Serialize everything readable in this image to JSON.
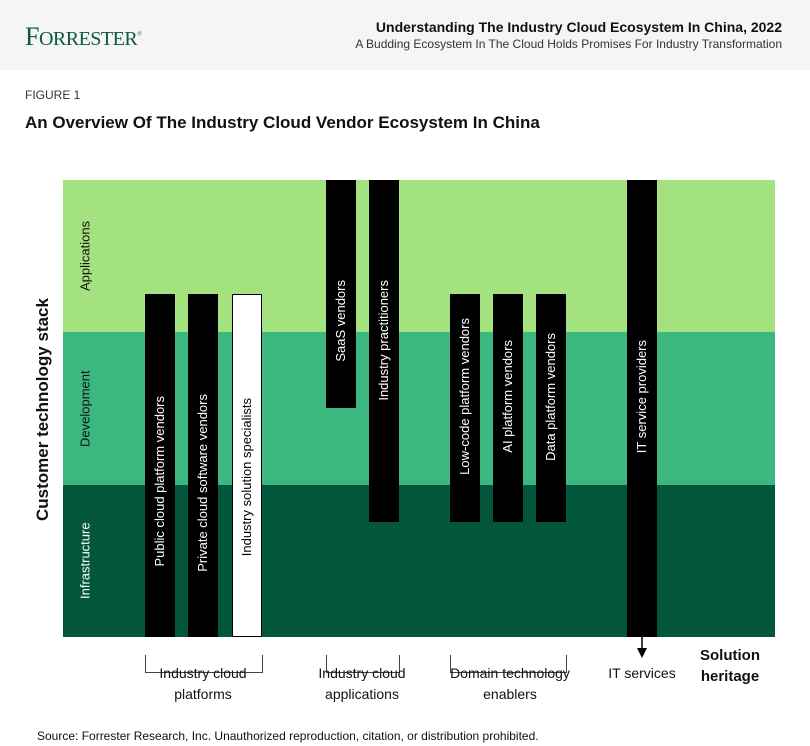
{
  "header": {
    "logo": "Forrester",
    "title": "Understanding The Industry Cloud Ecosystem In China, 2022",
    "subtitle": "A Budding Ecosystem In The Cloud Holds Promises For Industry Transformation"
  },
  "figure_label": "FIGURE 1",
  "figure_title": "An Overview Of The Industry Cloud Vendor Ecosystem In China",
  "y_axis_title": "Customer technology stack",
  "layers": [
    {
      "label": "Applications",
      "color": "#a4e17f"
    },
    {
      "label": "Development",
      "color": "#3bb77f"
    },
    {
      "label": "Infrastructure",
      "color": "#02563c"
    }
  ],
  "vendors": [
    {
      "label": "Public cloud platform vendors",
      "spans": "Applications–Infrastructure"
    },
    {
      "label": "Private cloud software vendors",
      "spans": "Applications–Infrastructure"
    },
    {
      "label": "Industry solution specialists",
      "spans": "Applications–Infrastructure"
    },
    {
      "label": "SaaS vendors",
      "spans": "Applications–Development"
    },
    {
      "label": "Industry practitioners",
      "spans": "Applications–Infrastructure"
    },
    {
      "label": "Low-code platform vendors",
      "spans": "Applications–Infrastructure"
    },
    {
      "label": "AI platform vendors",
      "spans": "Applications–Infrastructure"
    },
    {
      "label": "Data platform vendors",
      "spans": "Applications–Infrastructure"
    },
    {
      "label": "IT service providers",
      "spans": "Applications–Infrastructure"
    }
  ],
  "groups": [
    {
      "line1": "Industry cloud",
      "line2": "platforms"
    },
    {
      "line1": "Industry cloud",
      "line2": "applications"
    },
    {
      "line1": "Domain technology",
      "line2": "enablers"
    },
    {
      "line1": "IT services",
      "line2": ""
    }
  ],
  "x_axis_title": {
    "line1": "Solution",
    "line2": "heritage"
  },
  "source": "Source: Forrester Research, Inc. Unauthorized reproduction, citation, or distribution prohibited."
}
